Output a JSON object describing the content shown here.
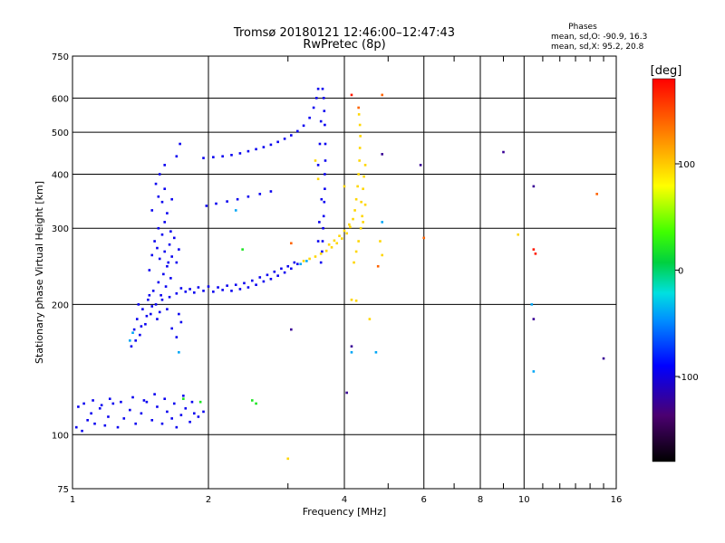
{
  "chart_data": {
    "type": "scatter",
    "title": "Tromsø 20180121 12:46:00–12:47:43",
    "subtitle": "RwPretec (8p)",
    "xlabel": "Frequency [MHz]",
    "ylabel": "Stationary phase Virtual Height [km]",
    "x_scale": "log",
    "y_scale": "log",
    "xlim": [
      1,
      16
    ],
    "ylim": [
      75,
      750
    ],
    "x_ticks": [
      1,
      2,
      4,
      6,
      8,
      10,
      16
    ],
    "x_minor_ticks": [
      3,
      5,
      7,
      9,
      11,
      12,
      13,
      14,
      15
    ],
    "y_ticks": [
      75,
      100,
      200,
      300,
      400,
      500,
      600,
      750
    ],
    "grid": true,
    "stats": {
      "title": "Phases",
      "line_o": "mean, sd,O: -90.9, 16.3",
      "line_x": "mean, sd,X:  95.2, 20.8"
    },
    "colorbar": {
      "label": "[deg]",
      "range": [
        -180,
        180
      ],
      "ticks": [
        100,
        0,
        -100
      ],
      "colormap": "rainbow"
    },
    "series": [
      {
        "phase": -95,
        "points": [
          [
            1.02,
            104
          ],
          [
            1.05,
            102
          ],
          [
            1.08,
            108
          ],
          [
            1.1,
            112
          ],
          [
            1.12,
            106
          ],
          [
            1.15,
            115
          ],
          [
            1.18,
            105
          ],
          [
            1.2,
            110
          ],
          [
            1.23,
            118
          ],
          [
            1.26,
            104
          ],
          [
            1.3,
            109
          ],
          [
            1.34,
            114
          ],
          [
            1.38,
            106
          ],
          [
            1.42,
            112
          ],
          [
            1.46,
            119
          ],
          [
            1.5,
            108
          ],
          [
            1.54,
            116
          ],
          [
            1.58,
            106
          ],
          [
            1.62,
            113
          ],
          [
            1.66,
            109
          ],
          [
            1.7,
            104
          ],
          [
            1.74,
            111
          ],
          [
            1.78,
            115
          ],
          [
            1.82,
            107
          ],
          [
            1.86,
            112
          ],
          [
            1.9,
            110
          ],
          [
            1.95,
            113
          ],
          [
            1.03,
            116
          ],
          [
            1.06,
            118
          ],
          [
            1.11,
            120
          ],
          [
            1.16,
            117
          ],
          [
            1.21,
            121
          ],
          [
            1.28,
            119
          ],
          [
            1.36,
            122
          ],
          [
            1.44,
            120
          ],
          [
            1.52,
            124
          ],
          [
            1.6,
            121
          ],
          [
            1.68,
            118
          ],
          [
            1.76,
            123
          ],
          [
            1.84,
            119
          ],
          [
            1.35,
            160
          ],
          [
            1.37,
            175
          ],
          [
            1.39,
            185
          ],
          [
            1.41,
            170
          ],
          [
            1.43,
            195
          ],
          [
            1.45,
            180
          ],
          [
            1.47,
            205
          ],
          [
            1.49,
            190
          ],
          [
            1.51,
            215
          ],
          [
            1.53,
            200
          ],
          [
            1.55,
            225
          ],
          [
            1.57,
            210
          ],
          [
            1.59,
            235
          ],
          [
            1.61,
            220
          ],
          [
            1.63,
            250
          ],
          [
            1.65,
            230
          ],
          [
            1.38,
            165
          ],
          [
            1.42,
            178
          ],
          [
            1.46,
            188
          ],
          [
            1.5,
            198
          ],
          [
            1.54,
            185
          ],
          [
            1.58,
            205
          ],
          [
            1.62,
            195
          ],
          [
            1.66,
            176
          ],
          [
            1.7,
            168
          ],
          [
            1.74,
            182
          ],
          [
            1.4,
            200
          ],
          [
            1.48,
            210
          ],
          [
            1.56,
            192
          ],
          [
            1.64,
            208
          ],
          [
            1.72,
            190
          ],
          [
            1.48,
            240
          ],
          [
            1.5,
            260
          ],
          [
            1.52,
            280
          ],
          [
            1.54,
            270
          ],
          [
            1.56,
            255
          ],
          [
            1.58,
            290
          ],
          [
            1.6,
            265
          ],
          [
            1.62,
            245
          ],
          [
            1.64,
            275
          ],
          [
            1.66,
            258
          ],
          [
            1.68,
            285
          ],
          [
            1.7,
            250
          ],
          [
            1.72,
            268
          ],
          [
            1.55,
            300
          ],
          [
            1.6,
            310
          ],
          [
            1.65,
            295
          ],
          [
            1.5,
            330
          ],
          [
            1.55,
            355
          ],
          [
            1.6,
            370
          ],
          [
            1.53,
            380
          ],
          [
            1.58,
            345
          ],
          [
            1.62,
            325
          ],
          [
            1.66,
            350
          ],
          [
            1.7,
            440
          ],
          [
            1.73,
            470
          ],
          [
            1.6,
            420
          ],
          [
            1.56,
            400
          ],
          [
            1.7,
            212
          ],
          [
            1.78,
            214
          ],
          [
            1.86,
            213
          ],
          [
            1.95,
            215
          ],
          [
            2.05,
            214
          ],
          [
            2.15,
            216
          ],
          [
            2.25,
            215
          ],
          [
            2.35,
            217
          ],
          [
            2.45,
            219
          ],
          [
            2.55,
            222
          ],
          [
            2.65,
            226
          ],
          [
            2.75,
            229
          ],
          [
            2.85,
            233
          ],
          [
            2.95,
            237
          ],
          [
            3.05,
            242
          ],
          [
            3.15,
            248
          ],
          [
            1.74,
            218
          ],
          [
            1.82,
            217
          ],
          [
            1.9,
            219
          ],
          [
            2.0,
            220
          ],
          [
            2.1,
            219
          ],
          [
            2.2,
            221
          ],
          [
            2.3,
            222
          ],
          [
            2.4,
            224
          ],
          [
            2.5,
            227
          ],
          [
            2.6,
            231
          ],
          [
            2.7,
            234
          ],
          [
            2.8,
            238
          ],
          [
            2.9,
            242
          ],
          [
            3.0,
            245
          ],
          [
            3.1,
            250
          ],
          [
            1.95,
            436
          ],
          [
            2.05,
            438
          ],
          [
            2.15,
            440
          ],
          [
            2.25,
            443
          ],
          [
            2.35,
            447
          ],
          [
            2.45,
            452
          ],
          [
            2.55,
            457
          ],
          [
            2.65,
            462
          ],
          [
            2.75,
            468
          ],
          [
            2.85,
            475
          ],
          [
            2.95,
            483
          ],
          [
            3.05,
            492
          ],
          [
            3.15,
            503
          ],
          [
            3.25,
            518
          ],
          [
            3.35,
            540
          ],
          [
            3.42,
            570
          ],
          [
            3.47,
            600
          ],
          [
            3.5,
            630
          ],
          [
            1.98,
            338
          ],
          [
            2.08,
            342
          ],
          [
            2.2,
            346
          ],
          [
            2.32,
            350
          ],
          [
            2.45,
            355
          ],
          [
            2.6,
            360
          ],
          [
            2.75,
            365
          ],
          [
            3.55,
            250
          ],
          [
            3.57,
            265
          ],
          [
            3.58,
            280
          ],
          [
            3.59,
            300
          ],
          [
            3.6,
            320
          ],
          [
            3.61,
            345
          ],
          [
            3.62,
            370
          ],
          [
            3.62,
            400
          ],
          [
            3.63,
            430
          ],
          [
            3.63,
            470
          ],
          [
            3.62,
            520
          ],
          [
            3.61,
            560
          ],
          [
            3.6,
            600
          ],
          [
            3.58,
            630
          ],
          [
            3.55,
            530
          ],
          [
            3.53,
            470
          ],
          [
            3.5,
            420
          ],
          [
            3.56,
            350
          ],
          [
            3.52,
            310
          ],
          [
            3.5,
            280
          ]
        ]
      },
      {
        "phase": -40,
        "points": [
          [
            1.34,
            165
          ],
          [
            1.36,
            172
          ],
          [
            1.72,
            155
          ],
          [
            2.3,
            330
          ],
          [
            3.2,
            248
          ],
          [
            3.3,
            252
          ],
          [
            4.15,
            155
          ],
          [
            4.7,
            155
          ],
          [
            4.85,
            310
          ],
          [
            10.5,
            140
          ],
          [
            10.4,
            200
          ]
        ]
      },
      {
        "phase": 20,
        "points": [
          [
            2.5,
            120
          ],
          [
            2.55,
            118
          ],
          [
            1.76,
            121
          ],
          [
            1.92,
            119
          ],
          [
            2.38,
            268
          ]
        ]
      },
      {
        "phase": 95,
        "points": [
          [
            3.25,
            252
          ],
          [
            3.35,
            255
          ],
          [
            3.45,
            258
          ],
          [
            3.55,
            262
          ],
          [
            3.65,
            266
          ],
          [
            3.75,
            271
          ],
          [
            3.85,
            277
          ],
          [
            3.95,
            284
          ],
          [
            4.05,
            292
          ],
          [
            4.12,
            302
          ],
          [
            4.18,
            315
          ],
          [
            4.22,
            330
          ],
          [
            4.25,
            350
          ],
          [
            4.28,
            375
          ],
          [
            4.3,
            400
          ],
          [
            4.32,
            430
          ],
          [
            4.33,
            460
          ],
          [
            4.34,
            490
          ],
          [
            4.33,
            520
          ],
          [
            4.31,
            550
          ],
          [
            4.3,
            280
          ],
          [
            4.35,
            300
          ],
          [
            4.38,
            320
          ],
          [
            4.36,
            345
          ],
          [
            4.4,
            370
          ],
          [
            4.42,
            395
          ],
          [
            4.45,
            420
          ],
          [
            4.4,
            310
          ],
          [
            4.45,
            340
          ],
          [
            3.7,
            275
          ],
          [
            3.8,
            281
          ],
          [
            3.9,
            288
          ],
          [
            4.0,
            296
          ],
          [
            4.1,
            306
          ],
          [
            4.15,
            205
          ],
          [
            4.25,
            204
          ],
          [
            4.2,
            250
          ],
          [
            4.25,
            265
          ],
          [
            3.0,
            88
          ],
          [
            4.0,
            375
          ],
          [
            3.5,
            390
          ],
          [
            3.45,
            430
          ],
          [
            4.55,
            185
          ],
          [
            4.85,
            260
          ],
          [
            4.8,
            280
          ],
          [
            9.7,
            290
          ]
        ]
      },
      {
        "phase": 140,
        "points": [
          [
            3.05,
            277
          ],
          [
            4.75,
            245
          ],
          [
            6.0,
            285
          ],
          [
            14.5,
            360
          ],
          [
            4.3,
            570
          ],
          [
            4.85,
            610
          ]
        ]
      },
      {
        "phase": 170,
        "points": [
          [
            4.15,
            610
          ],
          [
            10.5,
            268
          ],
          [
            10.6,
            262
          ]
        ]
      },
      {
        "phase": -125,
        "points": [
          [
            3.05,
            175
          ],
          [
            4.05,
            125
          ],
          [
            4.15,
            160
          ],
          [
            5.9,
            420
          ],
          [
            9.0,
            450
          ],
          [
            10.5,
            375
          ],
          [
            10.5,
            185
          ],
          [
            15.0,
            150
          ],
          [
            4.85,
            445
          ]
        ]
      }
    ]
  }
}
